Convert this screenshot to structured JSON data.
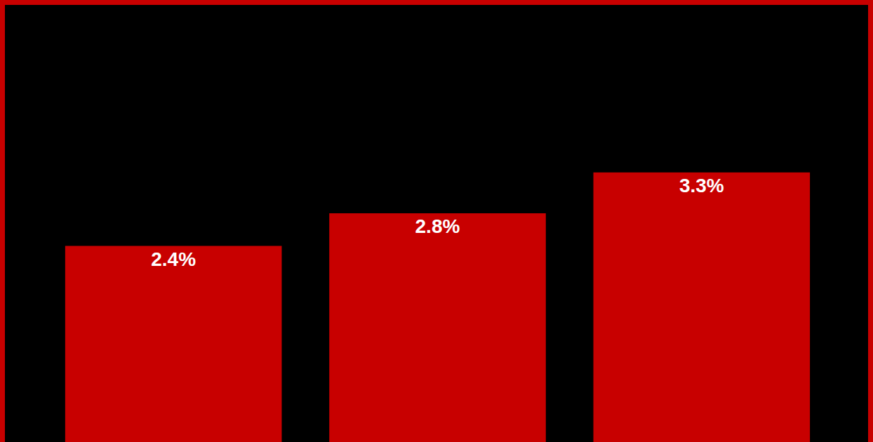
{
  "chart_data": {
    "type": "bar",
    "categories": [
      null,
      null,
      null
    ],
    "values": [
      2.4,
      2.8,
      3.3
    ],
    "value_labels": [
      "2.4%",
      "2.8%",
      "3.3%"
    ],
    "color": "#c80000",
    "ylim": [
      0,
      5.35
    ],
    "grid": false,
    "data_labels": true,
    "tick_labels": false
  }
}
